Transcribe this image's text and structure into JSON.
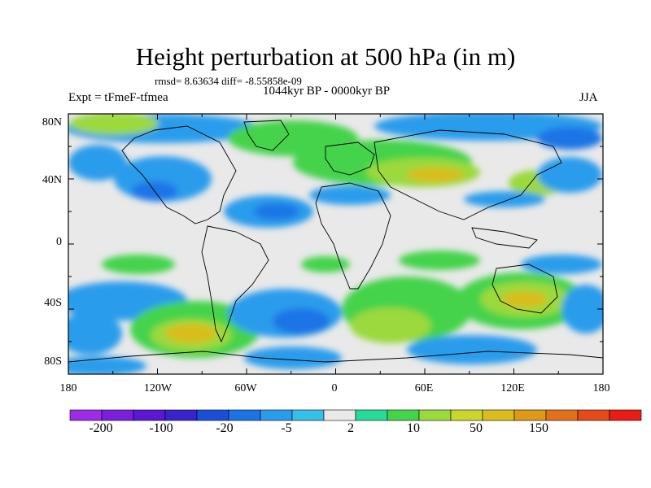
{
  "figure": {
    "title": "Height perturbation at 500 hPa (in m)",
    "stats": "rmsd= 8.63634 diff= -8.55858e-09",
    "left_label": "Expt = tFmeF-tfmea",
    "center_label": "1044kyr BP - 0000kyr BP",
    "right_label": "JJA"
  },
  "axes": {
    "lat_labels": [
      "80N",
      "40N",
      "0",
      "40S",
      "80S"
    ],
    "lon_labels": [
      "180",
      "120W",
      "60W",
      "0",
      "60E",
      "120E",
      "180"
    ]
  },
  "colorbar": {
    "colors": [
      "#9e2ce6",
      "#7b1fdc",
      "#5a17d4",
      "#3a23cc",
      "#1a4fd8",
      "#1c74e6",
      "#2a9cec",
      "#35bfe9",
      "#e9e9e9",
      "#28db9a",
      "#45d34c",
      "#9bd93e",
      "#c9d62c",
      "#d9bd1e",
      "#dd9917",
      "#e2701a",
      "#e64a1b",
      "#ea1c16"
    ],
    "labels": [
      "-200",
      "-100",
      "-20",
      "-5",
      "2",
      "10",
      "50",
      "150"
    ]
  },
  "colors": {
    "background_field": "#e9e9e9",
    "coastline": "#000000"
  }
}
